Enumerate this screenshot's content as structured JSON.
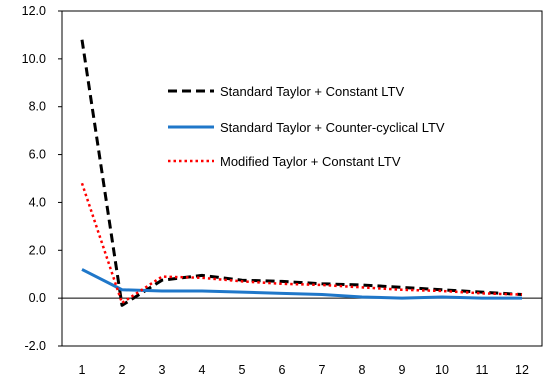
{
  "chart_data": {
    "type": "line",
    "x": [
      1,
      2,
      3,
      4,
      5,
      6,
      7,
      8,
      9,
      10,
      11,
      12
    ],
    "xlim": [
      0.5,
      12.5
    ],
    "ylim": [
      -2.0,
      12.0
    ],
    "yticks": [
      "12.0",
      "10.0",
      "8.0",
      "6.0",
      "4.0",
      "2.0",
      "0.0",
      "-2.0"
    ],
    "ytick_values": [
      12,
      10,
      8,
      6,
      4,
      2,
      0,
      -2
    ],
    "xticks": [
      "1",
      "2",
      "3",
      "4",
      "5",
      "6",
      "7",
      "8",
      "9",
      "10",
      "11",
      "12"
    ],
    "title": "",
    "xlabel": "",
    "ylabel": "",
    "grid": false,
    "legend_position": "inside-top-center",
    "series": [
      {
        "name": "Standard Taylor + Constant LTV",
        "color": "#000000",
        "style": "dashed",
        "values": [
          10.8,
          -0.3,
          0.75,
          0.95,
          0.75,
          0.7,
          0.6,
          0.55,
          0.45,
          0.35,
          0.25,
          0.15
        ]
      },
      {
        "name": "Standard Taylor + Counter-cyclical LTV",
        "color": "#1f77c9",
        "style": "solid",
        "values": [
          1.2,
          0.35,
          0.3,
          0.3,
          0.25,
          0.2,
          0.15,
          0.05,
          0.0,
          0.05,
          0.0,
          0.0
        ]
      },
      {
        "name": "Modified Taylor + Constant LTV",
        "color": "#ff0000",
        "style": "dotted",
        "values": [
          4.8,
          -0.2,
          0.9,
          0.85,
          0.7,
          0.6,
          0.55,
          0.45,
          0.35,
          0.3,
          0.2,
          0.15
        ]
      }
    ]
  }
}
